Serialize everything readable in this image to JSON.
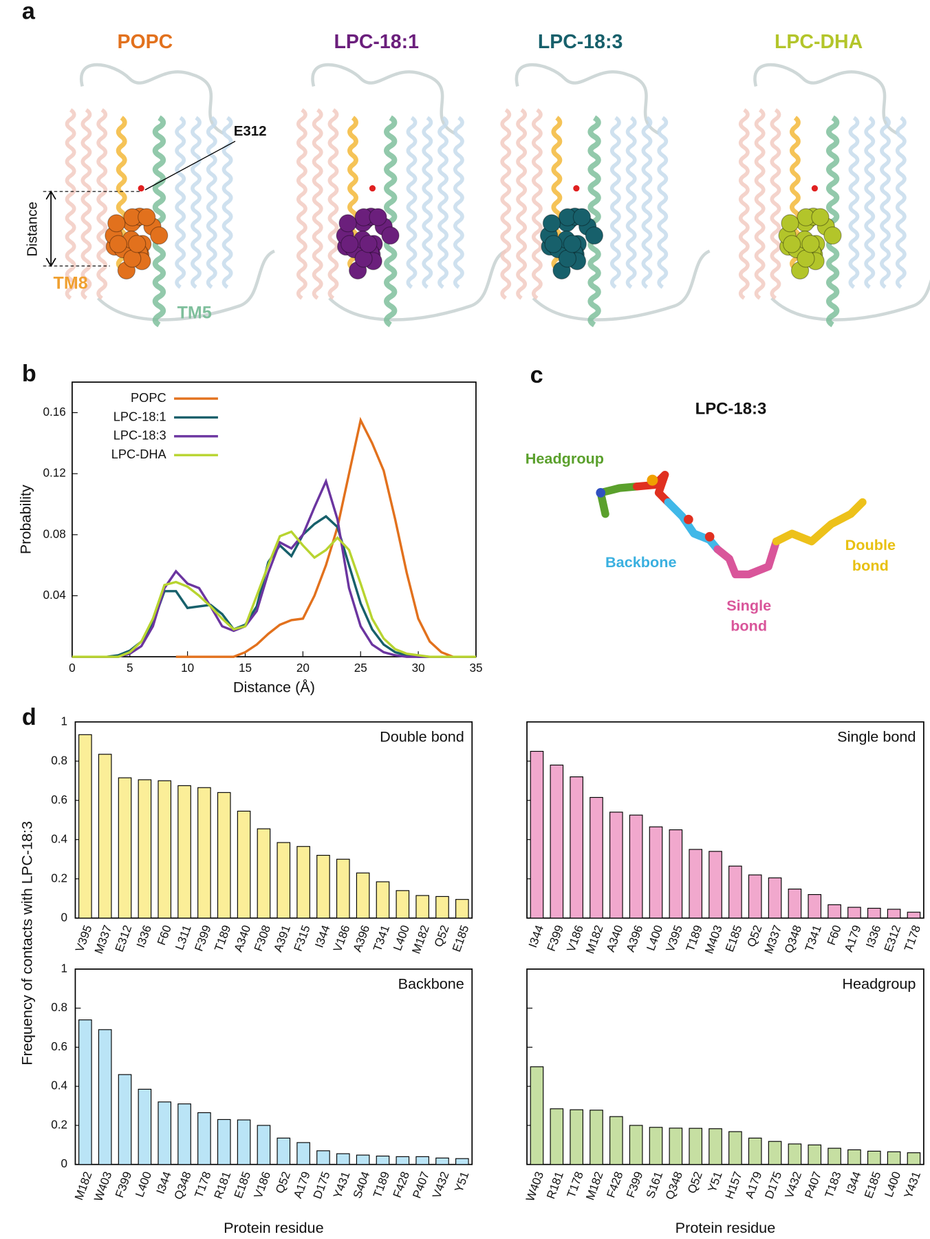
{
  "figure": {
    "panel_labels": [
      "a",
      "b",
      "c",
      "d"
    ],
    "panel_a": {
      "titles": [
        "POPC",
        "LPC-18:1",
        "LPC-18:3",
        "LPC-DHA"
      ],
      "title_colors": [
        "#e2711d",
        "#6b1f7c",
        "#17606b",
        "#b3c52a"
      ],
      "residue": "E312",
      "distance": "Distance",
      "tm8": "TM8",
      "tm5": "TM5"
    },
    "panel_c": {
      "title": "LPC-18:3",
      "headgroup": "Headgroup",
      "backbone": "Backbone",
      "single_bond": [
        "Single",
        "bond"
      ],
      "double_bond": [
        "Double",
        "bond"
      ]
    }
  },
  "chart_data": [
    {
      "type": "line",
      "xlabel": "Distance (Å)",
      "ylabel": "Probability",
      "x": [
        0,
        1,
        2,
        3,
        4,
        5,
        6,
        7,
        8,
        9,
        10,
        11,
        12,
        13,
        14,
        15,
        16,
        17,
        18,
        19,
        20,
        21,
        22,
        23,
        24,
        25,
        26,
        27,
        28,
        29,
        30,
        31,
        32,
        33,
        34,
        35
      ],
      "xlim": [
        0,
        35
      ],
      "xticks": [
        0,
        5,
        10,
        15,
        20,
        25,
        30,
        35
      ],
      "ylim": [
        0,
        0.18
      ],
      "yticks": [
        0.04,
        0.08,
        0.12,
        0.16
      ],
      "series": [
        {
          "name": "POPC",
          "color": "#e2711d",
          "values": [
            null,
            null,
            null,
            null,
            null,
            null,
            null,
            null,
            null,
            0,
            0,
            0,
            0,
            0,
            0,
            0.003,
            0.008,
            0.015,
            0.021,
            0.024,
            0.025,
            0.04,
            0.06,
            0.085,
            0.12,
            0.155,
            0.14,
            0.122,
            0.09,
            0.055,
            0.025,
            0.01,
            0.003,
            0,
            0,
            0
          ]
        },
        {
          "name": "LPC-18:1",
          "color": "#17606b",
          "values": [
            0,
            0,
            0,
            0,
            0.001,
            0.004,
            0.01,
            0.022,
            0.043,
            0.043,
            0.032,
            0.033,
            0.034,
            0.028,
            0.018,
            0.021,
            0.033,
            0.062,
            0.073,
            0.066,
            0.08,
            0.087,
            0.092,
            0.085,
            0.06,
            0.035,
            0.018,
            0.008,
            0.003,
            0.001,
            0,
            0,
            0,
            0,
            0,
            0
          ]
        },
        {
          "name": "LPC-18:3",
          "color": "#6b35a0",
          "values": [
            0,
            0,
            0,
            0,
            0,
            0.002,
            0.007,
            0.02,
            0.045,
            0.056,
            0.048,
            0.045,
            0.033,
            0.02,
            0.017,
            0.02,
            0.03,
            0.055,
            0.075,
            0.071,
            0.08,
            0.098,
            0.115,
            0.09,
            0.045,
            0.02,
            0.008,
            0.003,
            0.001,
            0,
            0,
            0,
            0,
            0,
            0,
            0
          ]
        },
        {
          "name": "LPC-DHA",
          "color": "#b8d430",
          "values": [
            0,
            0,
            0,
            0,
            0,
            0.003,
            0.01,
            0.025,
            0.047,
            0.049,
            0.046,
            0.04,
            0.033,
            0.025,
            0.018,
            0.02,
            0.04,
            0.06,
            0.079,
            0.082,
            0.073,
            0.065,
            0.07,
            0.078,
            0.07,
            0.048,
            0.025,
            0.012,
            0.005,
            0.002,
            0.001,
            0,
            0,
            0,
            0,
            0
          ]
        }
      ]
    },
    {
      "type": "bar",
      "title": "Double bond",
      "ylabel": "Frequency of contacts with LPC-18:3",
      "color": "#fbee98",
      "ylim": [
        0,
        1
      ],
      "yticks": [
        0,
        0.2,
        0.4,
        0.6,
        0.8,
        1
      ],
      "categories": [
        "V395",
        "M337",
        "E312",
        "I336",
        "F60",
        "L311",
        "F399",
        "T189",
        "A340",
        "F308",
        "A391",
        "F315",
        "I344",
        "V186",
        "A396",
        "T341",
        "L400",
        "M182",
        "Q52",
        "E185"
      ],
      "values": [
        0.935,
        0.835,
        0.715,
        0.705,
        0.7,
        0.675,
        0.665,
        0.64,
        0.545,
        0.455,
        0.385,
        0.365,
        0.32,
        0.3,
        0.23,
        0.185,
        0.14,
        0.115,
        0.11,
        0.095
      ]
    },
    {
      "type": "bar",
      "title": "Single bond",
      "color": "#f1a8cd",
      "ylim": [
        0,
        1
      ],
      "yticks": [
        0,
        0.2,
        0.4,
        0.6,
        0.8,
        1
      ],
      "categories": [
        "I344",
        "F399",
        "V186",
        "M182",
        "A340",
        "A396",
        "L400",
        "V395",
        "T189",
        "M403",
        "E185",
        "Q52",
        "M337",
        "Q348",
        "T341",
        "F60",
        "A179",
        "I336",
        "E312",
        "T178"
      ],
      "values": [
        0.85,
        0.78,
        0.72,
        0.615,
        0.54,
        0.525,
        0.465,
        0.45,
        0.35,
        0.34,
        0.265,
        0.22,
        0.205,
        0.148,
        0.12,
        0.068,
        0.055,
        0.05,
        0.045,
        0.03
      ]
    },
    {
      "type": "bar",
      "title": "Backbone",
      "xlabel": "Protein residue",
      "color": "#bae4f6",
      "ylim": [
        0,
        1
      ],
      "yticks": [
        0,
        0.2,
        0.4,
        0.6,
        0.8,
        1
      ],
      "categories": [
        "M182",
        "W403",
        "F399",
        "L400",
        "I344",
        "Q348",
        "T178",
        "R181",
        "E185",
        "V186",
        "Q52",
        "A179",
        "D175",
        "Y431",
        "S404",
        "T189",
        "F428",
        "P407",
        "V432",
        "Y51"
      ],
      "values": [
        0.74,
        0.69,
        0.46,
        0.385,
        0.32,
        0.31,
        0.265,
        0.23,
        0.228,
        0.2,
        0.135,
        0.112,
        0.07,
        0.055,
        0.048,
        0.043,
        0.04,
        0.04,
        0.033,
        0.03
      ]
    },
    {
      "type": "bar",
      "title": "Headgroup",
      "xlabel": "Protein residue",
      "color": "#c6dfa2",
      "ylim": [
        0,
        1
      ],
      "yticks": [
        0,
        0.2,
        0.4,
        0.6,
        0.8,
        1
      ],
      "categories": [
        "W403",
        "R181",
        "T178",
        "M182",
        "F428",
        "F399",
        "S161",
        "Q348",
        "Q52",
        "Y51",
        "H157",
        "A179",
        "D175",
        "V432",
        "P407",
        "T183",
        "I344",
        "E185",
        "L400",
        "Y431"
      ],
      "values": [
        0.5,
        0.285,
        0.28,
        0.278,
        0.245,
        0.2,
        0.19,
        0.186,
        0.185,
        0.183,
        0.168,
        0.135,
        0.118,
        0.105,
        0.1,
        0.083,
        0.075,
        0.068,
        0.065,
        0.06
      ]
    }
  ]
}
